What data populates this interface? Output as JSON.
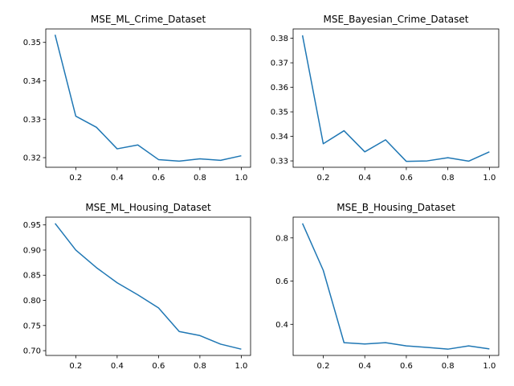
{
  "chart_data": [
    {
      "type": "line",
      "title": "MSE_ML_Crime_Dataset",
      "x": [
        0.1,
        0.2,
        0.3,
        0.4,
        0.5,
        0.6,
        0.7,
        0.8,
        0.9,
        1.0
      ],
      "series": [
        {
          "values": [
            0.352,
            0.3308,
            0.3279,
            0.3223,
            0.3233,
            0.3195,
            0.3191,
            0.3197,
            0.3193,
            0.3205
          ]
        }
      ],
      "xlim": [
        0.055,
        1.045
      ],
      "ylim": [
        0.3175,
        0.3535
      ],
      "xticks": [
        0.2,
        0.4,
        0.6,
        0.8,
        1.0
      ],
      "xtick_labels": [
        "0.2",
        "0.4",
        "0.6",
        "0.8",
        "1.0"
      ],
      "yticks": [
        0.32,
        0.33,
        0.34,
        0.35
      ],
      "ytick_labels": [
        "0.32",
        "0.33",
        "0.34",
        "0.35"
      ],
      "color": "#1f77b4"
    },
    {
      "type": "line",
      "title": "MSE_Bayesian_Crime_Dataset",
      "x": [
        0.1,
        0.2,
        0.3,
        0.4,
        0.5,
        0.6,
        0.7,
        0.8,
        0.9,
        1.0
      ],
      "series": [
        {
          "values": [
            0.3812,
            0.337,
            0.3423,
            0.3337,
            0.3386,
            0.3298,
            0.33,
            0.3313,
            0.3299,
            0.3337
          ]
        }
      ],
      "xlim": [
        0.055,
        1.045
      ],
      "ylim": [
        0.3274,
        0.3838
      ],
      "xticks": [
        0.2,
        0.4,
        0.6,
        0.8,
        1.0
      ],
      "xtick_labels": [
        "0.2",
        "0.4",
        "0.6",
        "0.8",
        "1.0"
      ],
      "yticks": [
        0.33,
        0.34,
        0.35,
        0.36,
        0.37,
        0.38
      ],
      "ytick_labels": [
        "0.33",
        "0.34",
        "0.35",
        "0.36",
        "0.37",
        "0.38"
      ],
      "color": "#1f77b4"
    },
    {
      "type": "line",
      "title": "MSE_ML_Housing_Dataset",
      "x": [
        0.1,
        0.2,
        0.3,
        0.4,
        0.5,
        0.6,
        0.7,
        0.8,
        0.9,
        1.0
      ],
      "series": [
        {
          "values": [
            0.953,
            0.9,
            0.865,
            0.835,
            0.811,
            0.785,
            0.738,
            0.73,
            0.713,
            0.703
          ]
        }
      ],
      "xlim": [
        0.055,
        1.045
      ],
      "ylim": [
        0.6905,
        0.9655
      ],
      "xticks": [
        0.2,
        0.4,
        0.6,
        0.8,
        1.0
      ],
      "xtick_labels": [
        "0.2",
        "0.4",
        "0.6",
        "0.8",
        "1.0"
      ],
      "yticks": [
        0.7,
        0.75,
        0.8,
        0.85,
        0.9,
        0.95
      ],
      "ytick_labels": [
        "0.70",
        "0.75",
        "0.80",
        "0.85",
        "0.90",
        "0.95"
      ],
      "color": "#1f77b4"
    },
    {
      "type": "line",
      "title": "MSE_B_Housing_Dataset",
      "x": [
        0.1,
        0.2,
        0.3,
        0.4,
        0.5,
        0.6,
        0.7,
        0.8,
        0.9,
        1.0
      ],
      "series": [
        {
          "values": [
            0.867,
            0.65,
            0.315,
            0.309,
            0.315,
            0.3,
            0.293,
            0.285,
            0.3,
            0.286
          ]
        }
      ],
      "xlim": [
        0.055,
        1.045
      ],
      "ylim": [
        0.2559,
        0.8961
      ],
      "xticks": [
        0.2,
        0.4,
        0.6,
        0.8,
        1.0
      ],
      "xtick_labels": [
        "0.2",
        "0.4",
        "0.6",
        "0.8",
        "1.0"
      ],
      "yticks": [
        0.4,
        0.6,
        0.8
      ],
      "ytick_labels": [
        "0.4",
        "0.6",
        "0.8"
      ],
      "color": "#1f77b4"
    }
  ]
}
